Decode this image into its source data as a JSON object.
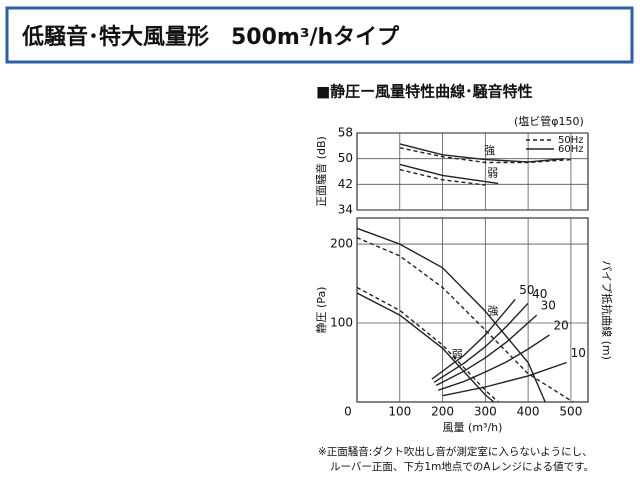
{
  "header": {
    "title": "低騒音･特大風量形　500m³/hタイプ"
  },
  "section_title": "■静圧ー風量特性曲線･騒音特性",
  "footnote": [
    "※正面騒音:ダクト吹出し音が測定室に入らないようにし、",
    "ルーバー正面、下方1m地点でのAレンジによる値です。"
  ],
  "chart_data": [
    {
      "type": "line",
      "note": "(塩ビ管φ150)",
      "ylabel": "正面騒音 (dB)",
      "xlim": [
        0,
        540
      ],
      "ylim": [
        34,
        58
      ],
      "yticks": [
        34,
        42,
        50,
        58
      ],
      "xgrid": [
        100,
        200,
        300,
        400,
        500
      ],
      "legend": "upper right",
      "labels": [
        "強",
        "弱"
      ],
      "series": [
        {
          "name": "50Hz",
          "color": "#222222",
          "dash": true,
          "curves": [
            {
              "x": [
                100,
                200,
                300,
                400,
                500
              ],
              "values": [
                53.4,
                50.6,
                48.8,
                48.8,
                49.7
              ]
            },
            {
              "x": [
                100,
                200,
                300
              ],
              "values": [
                46.6,
                43.4,
                41.8
              ]
            }
          ]
        },
        {
          "name": "60Hz",
          "color": "#222222",
          "dash": false,
          "curves": [
            {
              "x": [
                100,
                200,
                300,
                400,
                485
              ],
              "values": [
                54.6,
                51.2,
                49.7,
                49,
                50
              ]
            },
            {
              "x": [
                100,
                200,
                330
              ],
              "values": [
                48.2,
                44.8,
                42.3
              ]
            }
          ]
        }
      ]
    },
    {
      "type": "line",
      "xlabel": "風量 (m³/h)",
      "ylabel": "静圧 (Pa)",
      "y2label": "パイプ抵抗曲線 (m)",
      "xlim": [
        0,
        540
      ],
      "ylim": [
        0,
        233
      ],
      "xticks": [
        0,
        100,
        200,
        300,
        400,
        500
      ],
      "yticks": [
        100,
        200
      ],
      "labels": [
        "強",
        "弱"
      ],
      "series": [
        {
          "name": "50Hz",
          "color": "#222222",
          "dash": true,
          "curves": [
            {
              "x": [
                0,
                100,
                200,
                300,
                400,
                505
              ],
              "values": [
                208,
                185,
                145,
                91,
                36,
                0
              ]
            },
            {
              "x": [
                0,
                100,
                200,
                300,
                330
              ],
              "values": [
                145,
                116,
                72,
                15,
                0
              ]
            }
          ]
        },
        {
          "name": "60Hz",
          "color": "#222222",
          "dash": false,
          "curves": [
            {
              "x": [
                0,
                100,
                200,
                300,
                400,
                440
              ],
              "values": [
                220,
                200,
                170,
                115,
                50,
                0
              ]
            },
            {
              "x": [
                0,
                100,
                200,
                300,
                320
              ],
              "values": [
                138,
                110,
                68,
                9,
                0
              ]
            }
          ]
        }
      ],
      "resistance": [
        {
          "label": 50,
          "x": [
            175,
            250,
            300,
            370
          ],
          "values": [
            29,
            59,
            85,
            130
          ]
        },
        {
          "label": 40,
          "x": [
            180,
            250,
            300,
            350,
            400
          ],
          "values": [
            25,
            49,
            70,
            96,
            125
          ]
        },
        {
          "label": 30,
          "x": [
            185,
            250,
            300,
            350,
            420
          ],
          "values": [
            21,
            39,
            56,
            76,
            110
          ]
        },
        {
          "label": 20,
          "x": [
            190,
            250,
            300,
            350,
            400,
            450
          ],
          "values": [
            15,
            26,
            38,
            51,
            67,
            85
          ]
        },
        {
          "label": 10,
          "x": [
            200,
            300,
            400,
            490
          ],
          "values": [
            8,
            19,
            33,
            50
          ]
        }
      ]
    }
  ]
}
